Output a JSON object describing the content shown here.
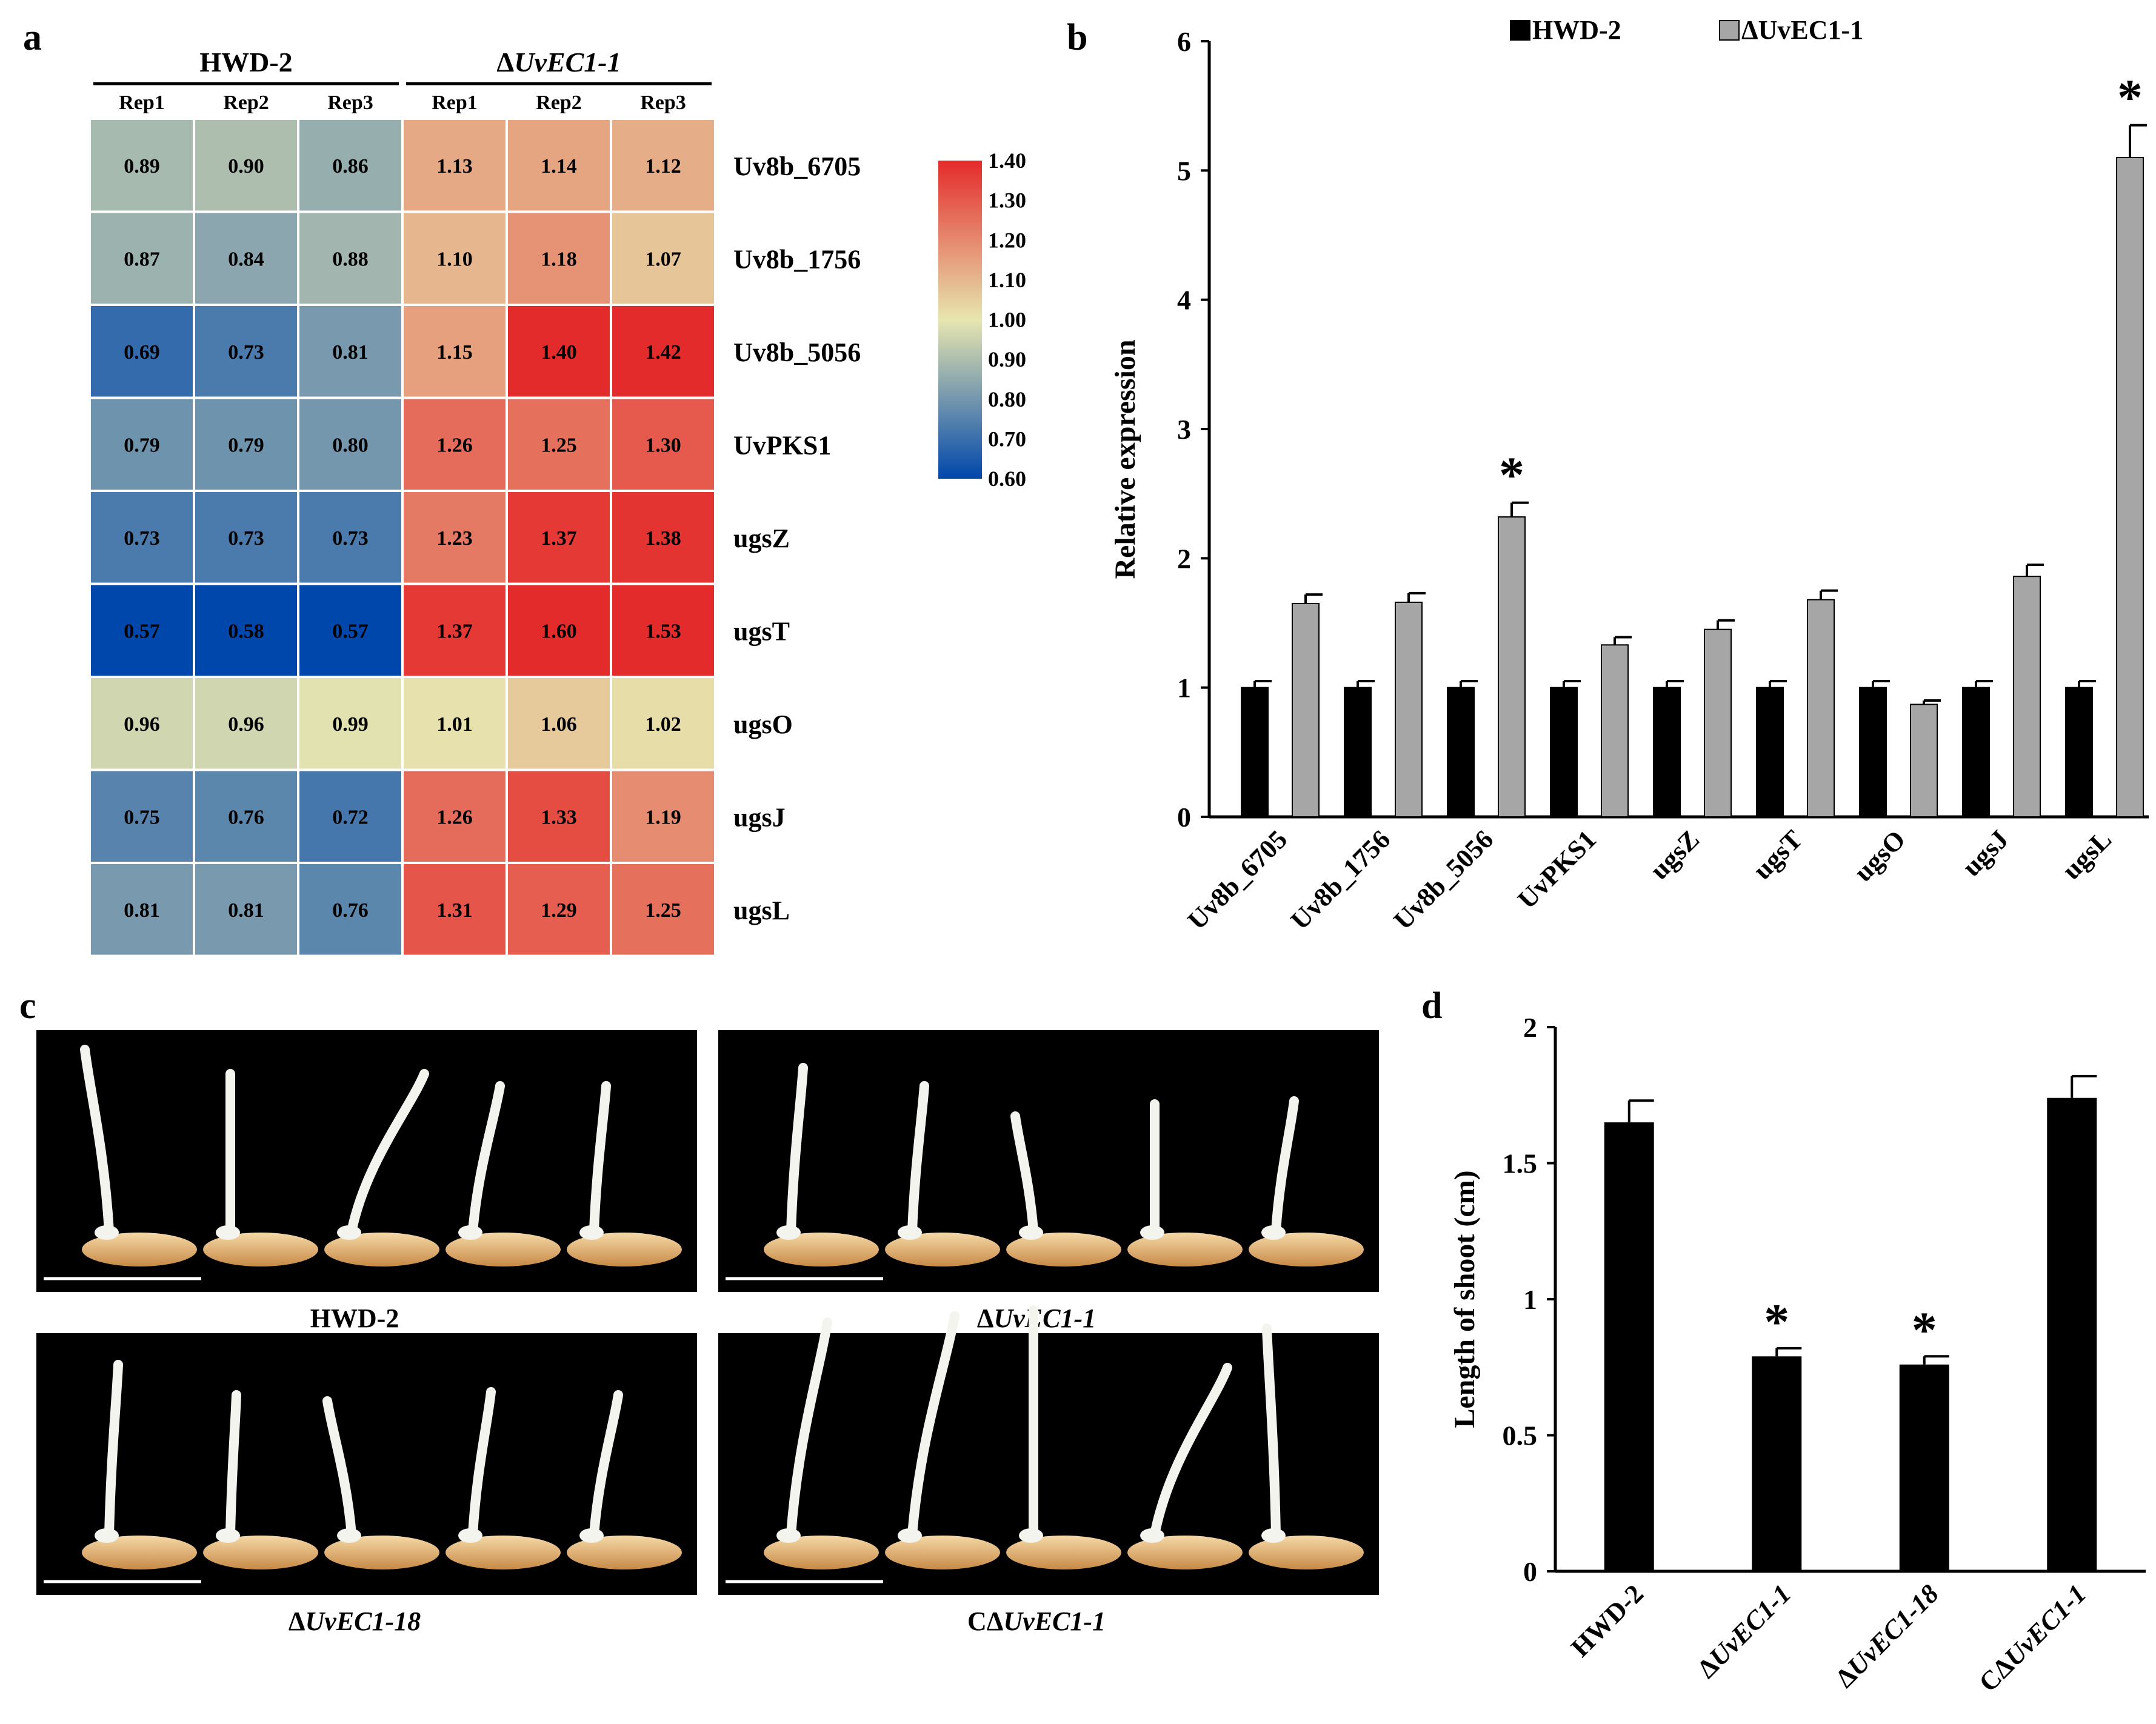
{
  "panel_labels": {
    "a": "a",
    "b": "b",
    "c": "c",
    "d": "d"
  },
  "chart_data": [
    {
      "id": "a",
      "type": "heatmap",
      "groups": [
        {
          "label": "HWD-2",
          "prefix": "",
          "italic": "",
          "columns": [
            "Rep1",
            "Rep2",
            "Rep3"
          ]
        },
        {
          "label": "ΔUvEC1-1",
          "prefix": "Δ",
          "italic": "UvEC1-1",
          "columns": [
            "Rep1",
            "Rep2",
            "Rep3"
          ]
        }
      ],
      "rows": [
        "Uv8b_6705",
        "Uv8b_1756",
        "Uv8b_5056",
        "UvPKS1",
        "ugsZ",
        "ugsT",
        "ugsO",
        "ugsJ",
        "ugsL"
      ],
      "values": [
        [
          "0.89",
          "0.90",
          "0.86",
          "1.13",
          "1.14",
          "1.12"
        ],
        [
          "0.87",
          "0.84",
          "0.88",
          "1.10",
          "1.18",
          "1.07"
        ],
        [
          "0.69",
          "0.73",
          "0.81",
          "1.15",
          "1.40",
          "1.42"
        ],
        [
          "0.79",
          "0.79",
          "0.80",
          "1.26",
          "1.25",
          "1.30"
        ],
        [
          "0.73",
          "0.73",
          "0.73",
          "1.23",
          "1.37",
          "1.38"
        ],
        [
          "0.57",
          "0.58",
          "0.57",
          "1.37",
          "1.60",
          "1.53"
        ],
        [
          "0.96",
          "0.96",
          "0.99",
          "1.01",
          "1.06",
          "1.02"
        ],
        [
          "0.75",
          "0.76",
          "0.72",
          "1.26",
          "1.33",
          "1.19"
        ],
        [
          "0.81",
          "0.81",
          "0.76",
          "1.31",
          "1.29",
          "1.25"
        ]
      ],
      "colorbar": {
        "ticks": [
          "1.40",
          "1.30",
          "1.20",
          "1.10",
          "1.00",
          "0.90",
          "0.80",
          "0.70",
          "0.60"
        ],
        "range": [
          0.6,
          1.4
        ],
        "colors": [
          "#0047ab",
          "#e7e6b0",
          "#e42b2b"
        ]
      }
    },
    {
      "id": "b",
      "type": "bar",
      "ylabel": "Relative expression",
      "ylim": [
        0,
        6
      ],
      "yticks": [
        "0",
        "1",
        "2",
        "3",
        "4",
        "5",
        "6"
      ],
      "categories": [
        "Uv8b_6705",
        "Uv8b_1756",
        "Uv8b_5056",
        "UvPKS1",
        "ugsZ",
        "ugsT",
        "ugsO",
        "ugsJ",
        "ugsL"
      ],
      "series": [
        {
          "name": "HWD-2",
          "color": "#000000",
          "values": [
            1.0,
            1.0,
            1.0,
            1.0,
            1.0,
            1.0,
            1.0,
            1.0,
            1.0
          ],
          "errors": [
            0.05,
            0.05,
            0.05,
            0.05,
            0.05,
            0.05,
            0.05,
            0.05,
            0.05
          ]
        },
        {
          "name": "ΔUvEC1-1",
          "color": "#a6a6a6",
          "values": [
            1.65,
            1.66,
            2.32,
            1.33,
            1.45,
            1.68,
            0.87,
            1.86,
            5.1
          ],
          "errors": [
            0.07,
            0.07,
            0.11,
            0.06,
            0.07,
            0.07,
            0.03,
            0.09,
            0.25
          ]
        }
      ],
      "significance": [
        "",
        "",
        "*",
        "",
        "",
        "",
        "",
        "",
        "*"
      ]
    },
    {
      "id": "d",
      "type": "bar",
      "ylabel": "Length of shoot (cm)",
      "ylim": [
        0,
        2
      ],
      "yticks": [
        "0",
        "0.5",
        "1",
        "1.5",
        "2"
      ],
      "categories": [
        {
          "prefix": "",
          "italic": "",
          "plain": "HWD-2"
        },
        {
          "prefix": "Δ",
          "italic": "UvEC1-1",
          "plain": ""
        },
        {
          "prefix": "Δ",
          "italic": "UvEC1-18",
          "plain": ""
        },
        {
          "prefix": "CΔ",
          "italic": "UvEC1-1",
          "plain": ""
        }
      ],
      "values": [
        1.65,
        0.79,
        0.76,
        1.74
      ],
      "errors": [
        0.08,
        0.03,
        0.03,
        0.08
      ],
      "color": "#000000",
      "significance": [
        "",
        "*",
        "*",
        ""
      ]
    }
  ],
  "photos": [
    {
      "caption_prefix": "",
      "caption_italic": "",
      "caption_plain": "HWD-2"
    },
    {
      "caption_prefix": "Δ",
      "caption_italic": "UvEC1-1",
      "caption_plain": ""
    },
    {
      "caption_prefix": "Δ",
      "caption_italic": "UvEC1-18",
      "caption_plain": ""
    },
    {
      "caption_prefix": "CΔ",
      "caption_italic": "UvEC1-1",
      "caption_plain": ""
    }
  ],
  "colors": {
    "seed_light": "#f5d9a8",
    "seed_dark": "#c88a46",
    "shoot": "#f4f4ee",
    "photo_bg": "#000000"
  }
}
